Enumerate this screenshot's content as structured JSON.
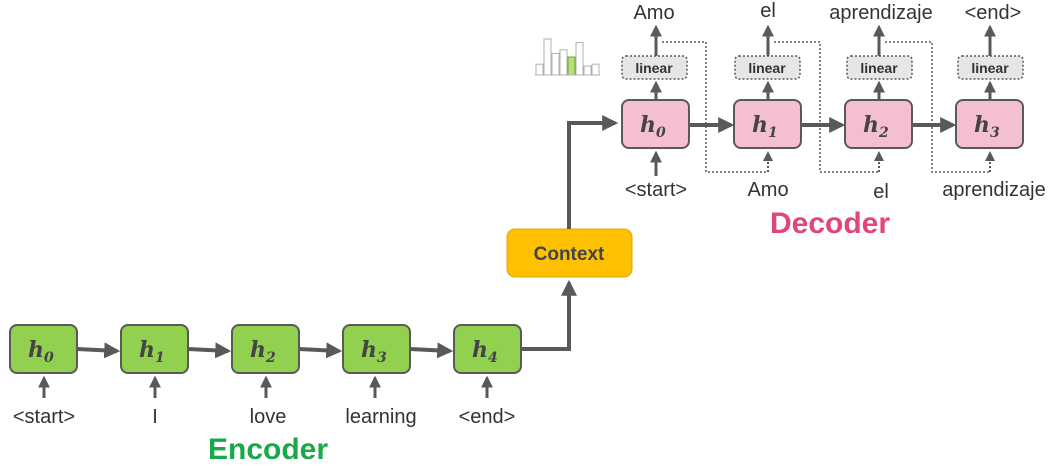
{
  "colors": {
    "encoder_fill": "#92d050",
    "decoder_fill": "#f4bfd0",
    "context_fill": "#ffc000",
    "encoder_title": "#1aa84a",
    "decoder_title": "#e0457b",
    "arrow": "#595959",
    "linear_fill": "#e6e6e6"
  },
  "encoder": {
    "title": "Encoder",
    "states": [
      {
        "h": "h",
        "sub": "0"
      },
      {
        "h": "h",
        "sub": "1"
      },
      {
        "h": "h",
        "sub": "2"
      },
      {
        "h": "h",
        "sub": "3"
      },
      {
        "h": "h",
        "sub": "4"
      }
    ],
    "inputs": [
      "<start>",
      "I",
      "love",
      "learning",
      "<end>"
    ]
  },
  "context": {
    "label": "Context"
  },
  "decoder": {
    "title": "Decoder",
    "states": [
      {
        "h": "h",
        "sub": "0"
      },
      {
        "h": "h",
        "sub": "1"
      },
      {
        "h": "h",
        "sub": "2"
      },
      {
        "h": "h",
        "sub": "3"
      }
    ],
    "linear_label": "linear",
    "inputs": [
      "<start>",
      "Amo",
      "el",
      "aprendizaje"
    ],
    "outputs": [
      "Amo",
      "el",
      "aprendizaje",
      "<end>"
    ]
  },
  "histogram": {
    "icon": "probability-histogram-icon",
    "bars": [
      0.3,
      1.0,
      0.6,
      0.7,
      0.5,
      0.9,
      0.25,
      0.3
    ],
    "highlight_index": 4
  }
}
